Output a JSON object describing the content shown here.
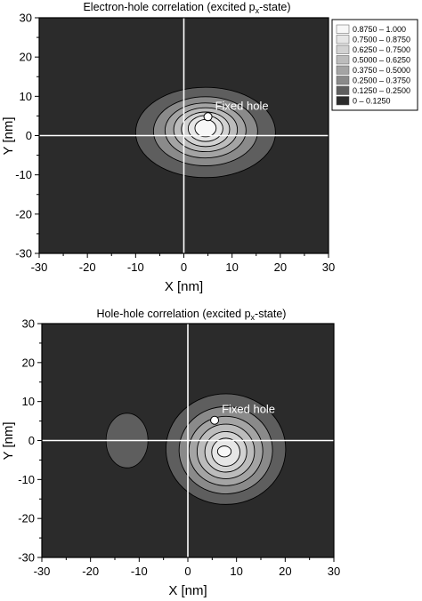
{
  "chart_data": [
    {
      "type": "contour",
      "title_main": "Electron-hole correlation (excited p",
      "title_sub": "x",
      "title_tail": "-state)",
      "xlabel": "X [nm]",
      "ylabel": "Y [nm]",
      "xlim": [
        -30,
        30
      ],
      "ylim": [
        -30,
        30
      ],
      "xticks": [
        "-30",
        "-20",
        "-10",
        "0",
        "10",
        "20",
        "30"
      ],
      "yticks": [
        "30",
        "20",
        "10",
        "0",
        "-10",
        "-20",
        "-30"
      ],
      "annotation": "Fixed hole",
      "fixed_hole": [
        5,
        4.8
      ],
      "peak_center": [
        4.5,
        2
      ],
      "contours": [
        {
          "rx": 14.5,
          "ry": 11.5,
          "cx": 4.5,
          "cy": 0.8
        },
        {
          "rx": 10.8,
          "ry": 8.8,
          "cx": 4.5,
          "cy": 1.1
        },
        {
          "rx": 8.4,
          "ry": 7.0,
          "cx": 4.5,
          "cy": 1.3
        },
        {
          "rx": 6.6,
          "ry": 5.6,
          "cx": 4.5,
          "cy": 1.5
        },
        {
          "rx": 5.0,
          "ry": 4.4,
          "cx": 4.5,
          "cy": 1.6
        },
        {
          "rx": 3.6,
          "ry": 3.3,
          "cx": 4.5,
          "cy": 1.8
        },
        {
          "rx": 2.2,
          "ry": 2.2,
          "cx": 4.5,
          "cy": 1.9
        }
      ],
      "legend": [
        {
          "label": "0.8750  –  1.000",
          "color": "#f7f7f7"
        },
        {
          "label": "0.7500  –  0.8750",
          "color": "#e6e6e6"
        },
        {
          "label": "0.6250  –  0.7500",
          "color": "#d2d2d2"
        },
        {
          "label": "0.5000  –  0.6250",
          "color": "#bcbcbc"
        },
        {
          "label": "0.3750  –  0.5000",
          "color": "#a4a4a4"
        },
        {
          "label": "0.2500  –  0.3750",
          "color": "#8a8a8a"
        },
        {
          "label": "0.1250  –  0.2500",
          "color": "#5e5e5e"
        },
        {
          "label": "0  –  0.1250",
          "color": "#2b2b2b"
        }
      ]
    },
    {
      "type": "contour",
      "title_main": "Hole-hole correlation (excited p",
      "title_sub": "x",
      "title_tail": "-state)",
      "xlabel": "X [nm]",
      "ylabel": "Y [nm]",
      "xlim": [
        -30,
        30
      ],
      "ylim": [
        -30,
        30
      ],
      "xticks": [
        "-30",
        "-20",
        "-10",
        "0",
        "10",
        "20",
        "30"
      ],
      "yticks": [
        "30",
        "20",
        "10",
        "0",
        "-10",
        "-20",
        "-30"
      ],
      "annotation": "Fixed hole",
      "fixed_hole": [
        5.5,
        5.2
      ],
      "peak_center": [
        7.5,
        -3
      ],
      "side_lobe": {
        "cx": -12.5,
        "cy": 0,
        "rx": 4.3,
        "ry": 7.0
      },
      "contours": [
        {
          "rx": 12.3,
          "ry": 14.2,
          "cx": 7.8,
          "cy": -2.2
        },
        {
          "rx": 9.6,
          "ry": 11.2,
          "cx": 7.8,
          "cy": -2.5
        },
        {
          "rx": 7.6,
          "ry": 8.9,
          "cx": 7.8,
          "cy": -2.7
        },
        {
          "rx": 5.9,
          "ry": 7.0,
          "cx": 7.8,
          "cy": -2.8
        },
        {
          "rx": 4.3,
          "ry": 5.2,
          "cx": 7.8,
          "cy": -2.9
        },
        {
          "rx": 2.9,
          "ry": 3.6,
          "cx": 7.8,
          "cy": -3.0
        },
        {
          "rx": 1.4,
          "ry": 1.4,
          "cx": 7.5,
          "cy": -2.8
        }
      ]
    }
  ]
}
